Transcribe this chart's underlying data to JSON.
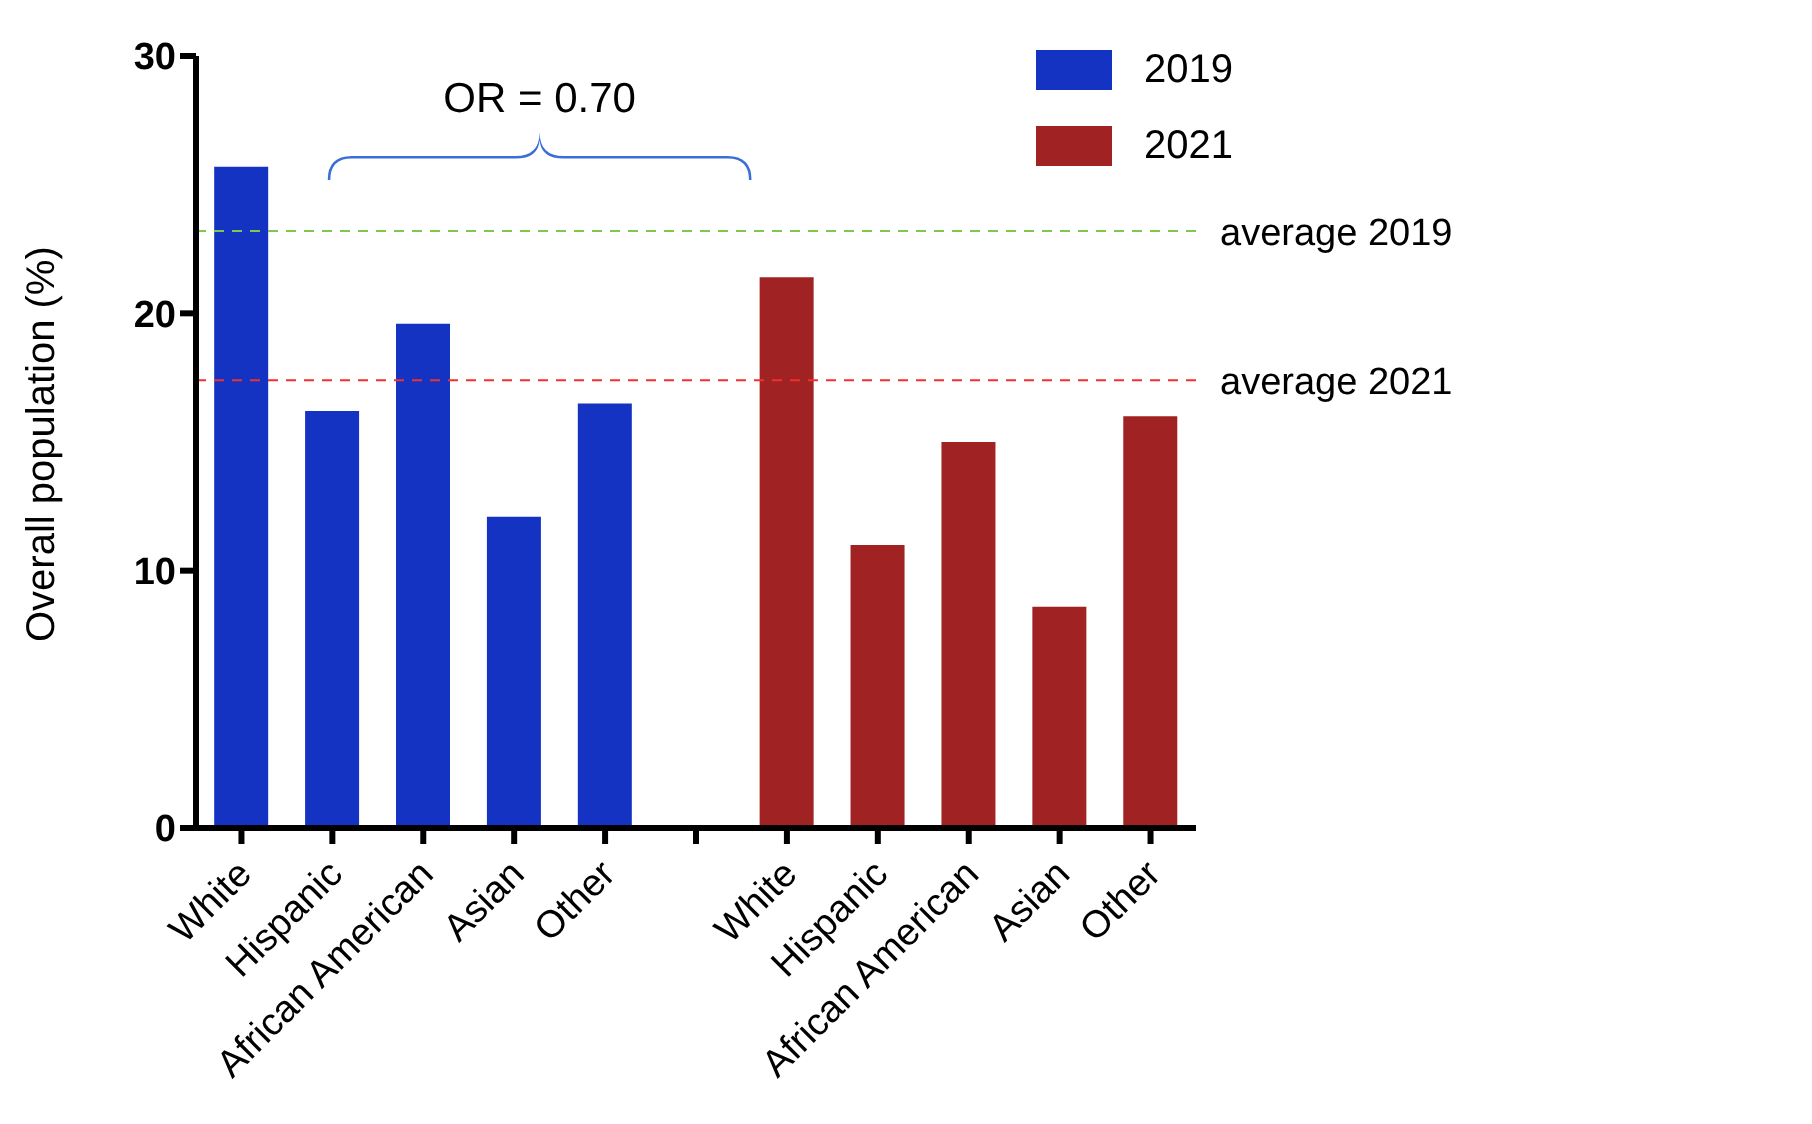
{
  "chart_data": {
    "type": "bar",
    "ylabel": "Overall population (%)",
    "categories": [
      "White",
      "Hispanic",
      "African American",
      "Asian",
      "Other",
      null,
      "White",
      "Hispanic",
      "African American",
      "Asian",
      "Other"
    ],
    "series": [
      {
        "name": "2019",
        "color": "#1533c2",
        "values": [
          25.7,
          16.2,
          19.6,
          12.1,
          16.5,
          null,
          null,
          null,
          null,
          null,
          null
        ]
      },
      {
        "name": "2021",
        "color": "#a02222",
        "values": [
          null,
          null,
          null,
          null,
          null,
          null,
          21.4,
          11.0,
          15.0,
          8.6,
          16.0
        ]
      }
    ],
    "ylim": [
      0,
      30
    ],
    "yticks": [
      0,
      10,
      20,
      30
    ],
    "legend": "top right",
    "ref_lines": [
      {
        "axis": "y",
        "value": 23.2,
        "label": "average 2019",
        "color": "#7ec850",
        "line_style": "dashed"
      },
      {
        "axis": "y",
        "value": 17.4,
        "label": "average 2021",
        "color": "#f03030",
        "line_style": "dashed"
      }
    ],
    "annotations": [
      "OR = 0.70"
    ]
  }
}
